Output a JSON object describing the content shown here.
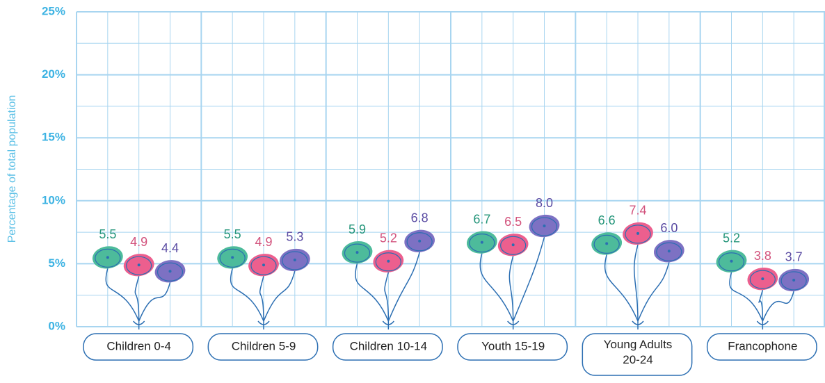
{
  "chart_data": {
    "type": "balloon",
    "y_label": "Percentage of total population",
    "categories": [
      "Children 0-4",
      "Children 5-9",
      "Children 10-14",
      "Youth 15-19",
      "Young Adults\n20-24",
      "Francophone"
    ],
    "series": [
      {
        "color": "#4dbb9b",
        "label_color": "#24957a",
        "values": [
          5.5,
          5.5,
          5.9,
          6.7,
          6.6,
          5.2
        ],
        "value_labels": [
          "5.5",
          "5.5",
          "5.9",
          "6.7",
          "6.6",
          "5.2"
        ]
      },
      {
        "color": "#ec5f8e",
        "label_color": "#d2527c",
        "values": [
          4.9,
          4.9,
          5.2,
          6.5,
          7.4,
          3.8
        ],
        "value_labels": [
          "4.9",
          "4.9",
          "5.2",
          "6.5",
          "7.4",
          "3.8"
        ]
      },
      {
        "color": "#7d71c3",
        "label_color": "#5a4ca3",
        "values": [
          4.4,
          5.3,
          6.8,
          8.0,
          6.0,
          3.7
        ],
        "value_labels": [
          "4.4",
          "5.3",
          "6.8",
          "8.0",
          "6.0",
          "3.7"
        ]
      }
    ],
    "ylim": [
      0,
      25
    ],
    "yticks": [
      {
        "value": 0,
        "label": "0%"
      },
      {
        "value": 5,
        "label": "5%"
      },
      {
        "value": 10,
        "label": "10%"
      },
      {
        "value": 15,
        "label": "15%"
      },
      {
        "value": 20,
        "label": "20%"
      },
      {
        "value": 25,
        "label": "25%"
      }
    ],
    "grid": true
  }
}
